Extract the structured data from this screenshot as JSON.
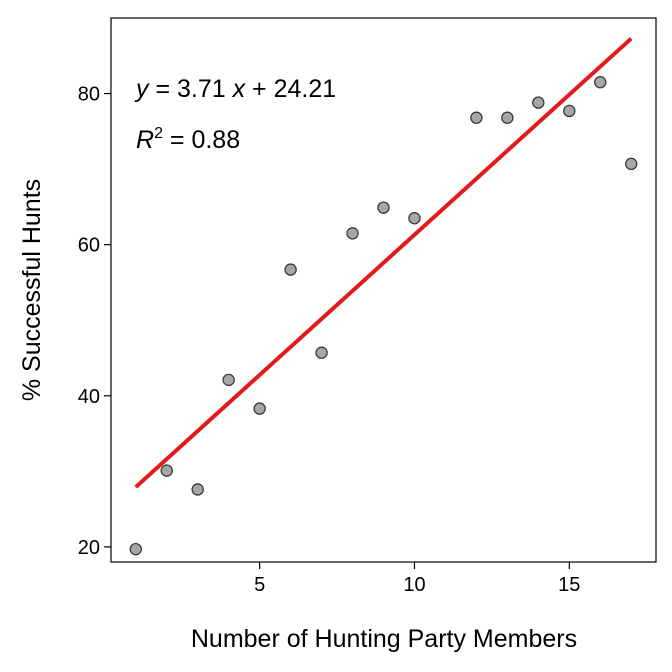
{
  "chart_data": {
    "type": "scatter",
    "xlabel": "Number of Hunting Party Members",
    "ylabel": "% Successful Hunts",
    "xlim": [
      0.2,
      17.8
    ],
    "ylim": [
      18,
      90
    ],
    "x_ticks": [
      5,
      10,
      15
    ],
    "y_ticks": [
      20,
      40,
      60,
      80
    ],
    "grid": false,
    "points": [
      {
        "x": 1,
        "y": 19.7
      },
      {
        "x": 2,
        "y": 30.1
      },
      {
        "x": 3,
        "y": 27.6
      },
      {
        "x": 4,
        "y": 42.1
      },
      {
        "x": 5,
        "y": 38.3
      },
      {
        "x": 6,
        "y": 56.7
      },
      {
        "x": 7,
        "y": 45.7
      },
      {
        "x": 8,
        "y": 61.5
      },
      {
        "x": 9,
        "y": 64.9
      },
      {
        "x": 10,
        "y": 63.5
      },
      {
        "x": 12,
        "y": 76.8
      },
      {
        "x": 13,
        "y": 76.8
      },
      {
        "x": 14,
        "y": 78.8
      },
      {
        "x": 15,
        "y": 77.7
      },
      {
        "x": 16,
        "y": 81.5
      },
      {
        "x": 17,
        "y": 70.7
      }
    ],
    "fit_line": {
      "slope": 3.71,
      "intercept": 24.21,
      "x_range": [
        1,
        17
      ],
      "color": "#e31a1c"
    },
    "equation": {
      "y_var": "y",
      "eq_mid": " = 3.71 ",
      "x_var": "x",
      "eq_end": " + 24.21",
      "r_var": "R",
      "r_sup": "2",
      "r_val": " = 0.88"
    },
    "point_fill": "#a6a6a6",
    "point_stroke": "#333333"
  }
}
